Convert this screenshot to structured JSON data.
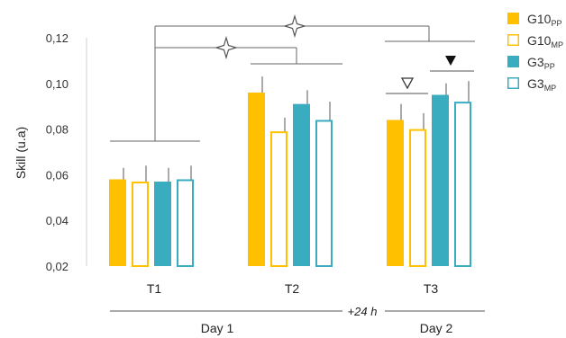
{
  "chart_data": {
    "type": "bar",
    "ylabel": "Skill (u.a)",
    "ylim": [
      0.02,
      0.12
    ],
    "yticks": [
      "0,02",
      "0,04",
      "0,06",
      "0,08",
      "0,10",
      "0,12"
    ],
    "grid": false,
    "legend_position": "right",
    "categories": [
      "T1",
      "T2",
      "T3"
    ],
    "series": [
      {
        "label_main": "G10",
        "label_sub": "PP",
        "color": "#FFC000",
        "filled": true,
        "values": [
          0.058,
          0.096,
          0.084
        ],
        "errors": [
          0.005,
          0.007,
          0.007
        ]
      },
      {
        "label_main": "G10",
        "label_sub": "MP",
        "color": "#FFC000",
        "filled": false,
        "values": [
          0.057,
          0.079,
          0.08
        ],
        "errors": [
          0.007,
          0.006,
          0.007
        ]
      },
      {
        "label_main": "G3",
        "label_sub": "PP",
        "color": "#3AACC0",
        "filled": true,
        "values": [
          0.057,
          0.091,
          0.095
        ],
        "errors": [
          0.006,
          0.006,
          0.005
        ]
      },
      {
        "label_main": "G3",
        "label_sub": "MP",
        "color": "#3AACC0",
        "filled": false,
        "values": [
          0.058,
          0.084,
          0.092
        ],
        "errors": [
          0.006,
          0.008,
          0.009
        ]
      }
    ],
    "days": [
      "Day 1",
      "Day 2"
    ],
    "gap_label": "+24 h",
    "sleep_icon": "moon-icon",
    "significance": [
      {
        "between": "T1 vs T2",
        "marker": "four-point-star"
      },
      {
        "between": "T1 vs T3",
        "marker": "four-point-star"
      },
      {
        "between": "T3 G10PP vs G10MP",
        "marker": "open-triangle-down"
      },
      {
        "between": "T3 G3PP vs G3MP",
        "marker": "filled-triangle-down"
      }
    ]
  }
}
